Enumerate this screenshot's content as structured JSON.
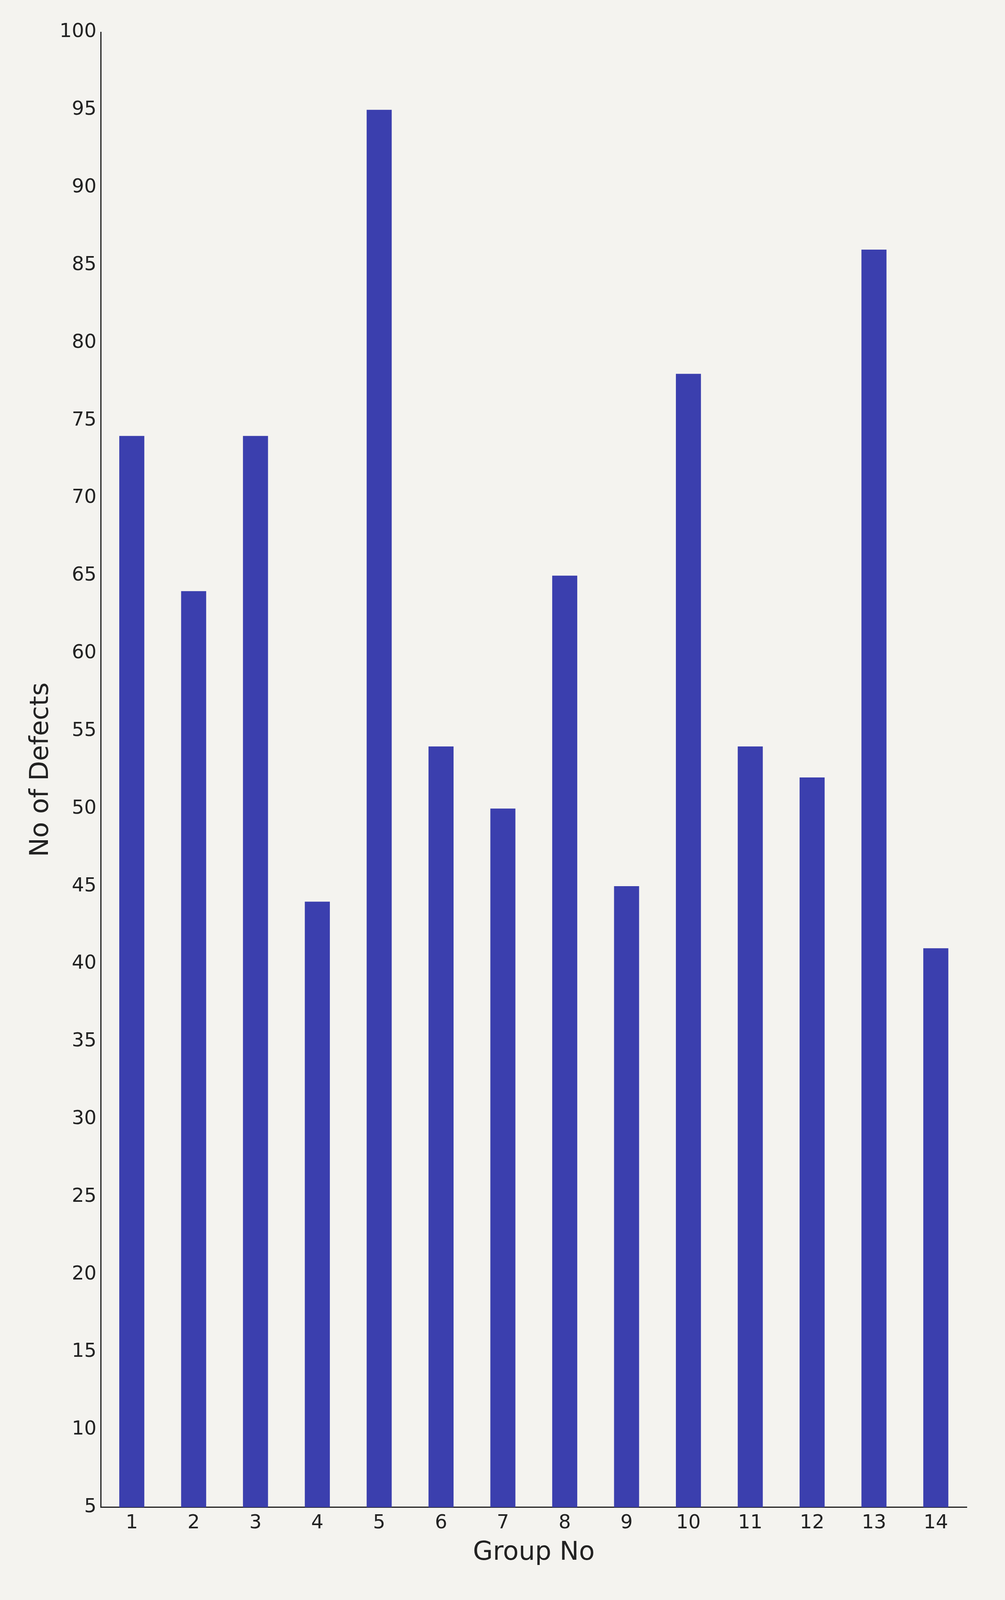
{
  "chart_data": {
    "type": "bar",
    "x_label": "Group No",
    "y_label": "No of Defects",
    "categories": [
      "1",
      "2",
      "3",
      "4",
      "5",
      "6",
      "7",
      "8",
      "9",
      "10",
      "11",
      "12",
      "13",
      "14"
    ],
    "values": [
      74,
      64,
      74,
      44,
      95,
      54,
      50,
      65,
      45,
      78,
      54,
      52,
      86,
      41
    ],
    "color": "#3b3fae",
    "ylim": [
      5,
      100
    ],
    "yticks": [
      5,
      10,
      15,
      20,
      25,
      30,
      35,
      40,
      45,
      50,
      55,
      60,
      65,
      70,
      75,
      80,
      85,
      90,
      95,
      100
    ],
    "grid": false
  }
}
